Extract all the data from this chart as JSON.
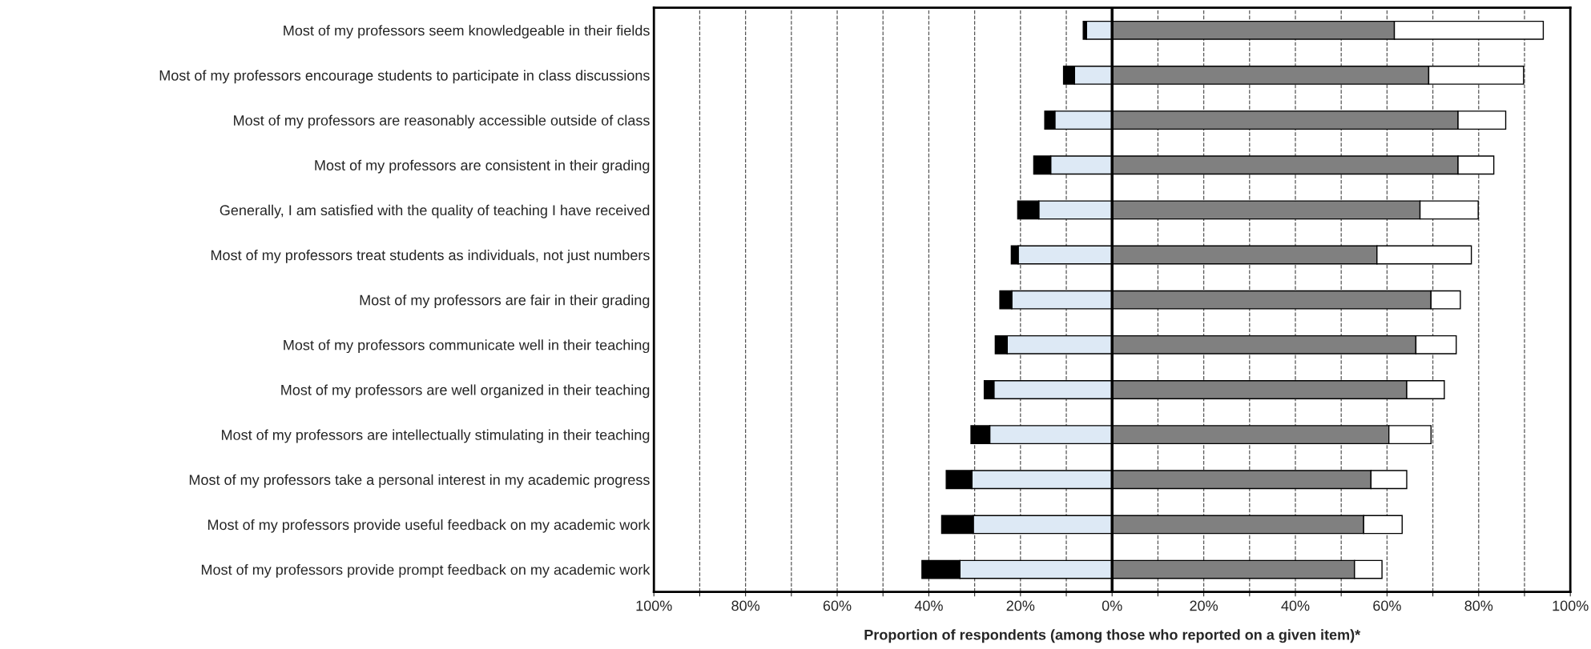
{
  "chart_data": {
    "type": "bar",
    "orientation": "horizontal",
    "stacked": true,
    "categories": [
      "Most of my professors seem knowledgeable in their fields",
      "Most of my professors encourage students to participate in class discussions",
      "Most of my professors are reasonably accessible outside of class",
      "Most of my professors are consistent in their grading",
      "Generally, I am satisfied with the quality of teaching I have received",
      "Most of my professors treat students as individuals, not just numbers",
      "Most of my professors are fair in their grading",
      "Most of my professors communicate well in their teaching",
      "Most of my professors are well organized in their teaching",
      "Most of my professors are intellectually stimulating in their teaching",
      "Most of my professors take a personal interest in my academic progress",
      "Most of my professors provide useful feedback on my academic work",
      "Most of my professors provide prompt feedback on my academic work"
    ],
    "series": [
      {
        "color": "#dde9f5",
        "values": [
          -5.6,
          -8.2,
          -12.5,
          -13.4,
          -16.0,
          -20.5,
          -21.9,
          -22.9,
          -25.8,
          -26.7,
          -30.6,
          -30.3,
          -33.2
        ]
      },
      {
        "color": "#000000",
        "values": [
          -0.7,
          -2.4,
          -2.2,
          -3.7,
          -4.6,
          -1.5,
          -2.6,
          -2.6,
          -2.1,
          -4.1,
          -5.6,
          -6.9,
          -8.3
        ]
      },
      {
        "color": "#808080",
        "values": [
          61.6,
          69.1,
          75.5,
          75.5,
          67.2,
          57.8,
          69.6,
          66.3,
          64.3,
          60.4,
          56.5,
          54.9,
          52.9
        ]
      },
      {
        "color": "#ffffff",
        "values": [
          32.5,
          20.7,
          10.4,
          7.8,
          12.7,
          20.6,
          6.4,
          8.8,
          8.2,
          9.2,
          7.8,
          8.4,
          6.0
        ]
      }
    ],
    "xlim": [
      -100,
      100
    ],
    "xticks": [
      {
        "value": -100,
        "label": "100%"
      },
      {
        "value": -90,
        "label": null
      },
      {
        "value": -80,
        "label": "80%"
      },
      {
        "value": -70,
        "label": null
      },
      {
        "value": -60,
        "label": "60%"
      },
      {
        "value": -50,
        "label": null
      },
      {
        "value": -40,
        "label": "40%"
      },
      {
        "value": -30,
        "label": null
      },
      {
        "value": -20,
        "label": "20%"
      },
      {
        "value": -10,
        "label": null
      },
      {
        "value": 0,
        "label": "0%"
      },
      {
        "value": 10,
        "label": null
      },
      {
        "value": 20,
        "label": "20%"
      },
      {
        "value": 30,
        "label": null
      },
      {
        "value": 40,
        "label": "40%"
      },
      {
        "value": 50,
        "label": null
      },
      {
        "value": 60,
        "label": "60%"
      },
      {
        "value": 70,
        "label": null
      },
      {
        "value": 80,
        "label": "80%"
      },
      {
        "value": 90,
        "label": null
      },
      {
        "value": 100,
        "label": "100%"
      }
    ],
    "xlabel": "Proportion of respondents (among those who reported on a given item)*",
    "grid": "x",
    "line_style": "dashed"
  }
}
